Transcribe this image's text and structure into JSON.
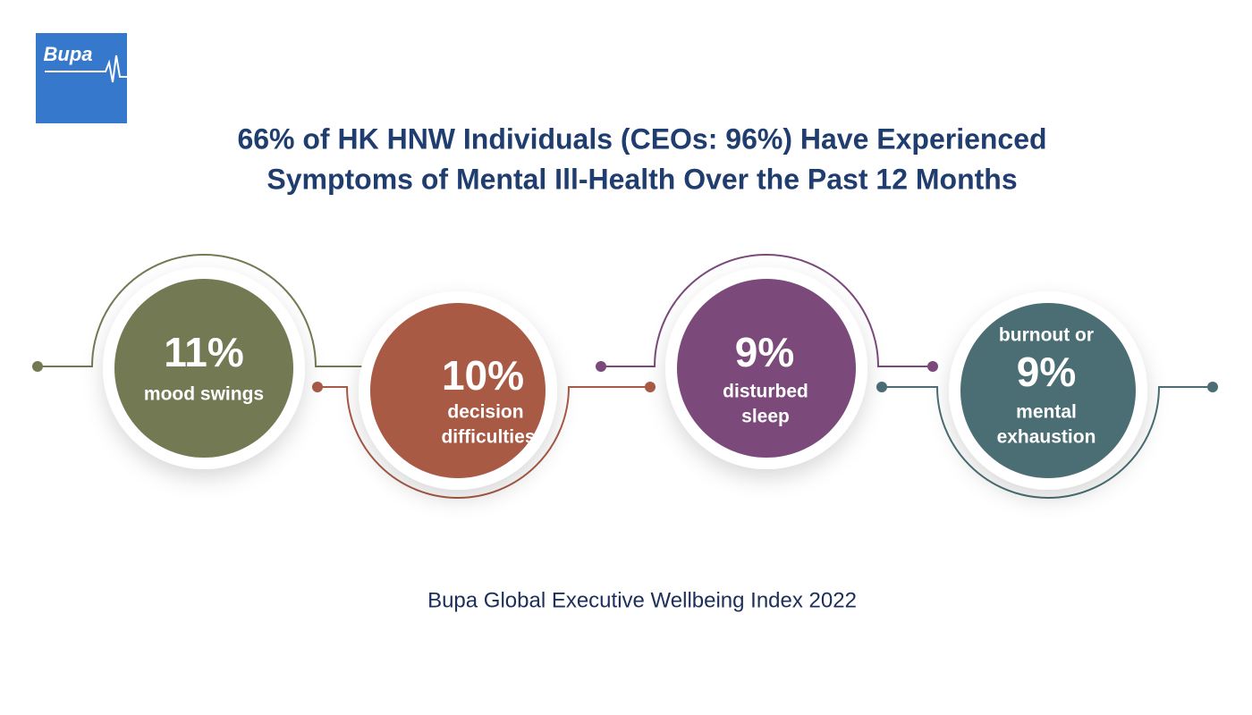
{
  "logo": "Bupa",
  "title": [
    "66% of HK HNW Individuals (CEOs: 96%) Have Experienced",
    "Symptoms of Mental Ill-Health Over the Past 12 Months"
  ],
  "items": [
    {
      "value": "11%",
      "label": [
        "mood swings"
      ]
    },
    {
      "value": "10%",
      "label": [
        "decision",
        "difficulties"
      ]
    },
    {
      "value": "9%",
      "label": [
        "disturbed",
        "sleep"
      ]
    },
    {
      "pre": "burnout or",
      "value": "9%",
      "label": [
        "mental",
        "exhaustion"
      ]
    }
  ],
  "source": "Bupa Global Executive Wellbeing Index 2022"
}
